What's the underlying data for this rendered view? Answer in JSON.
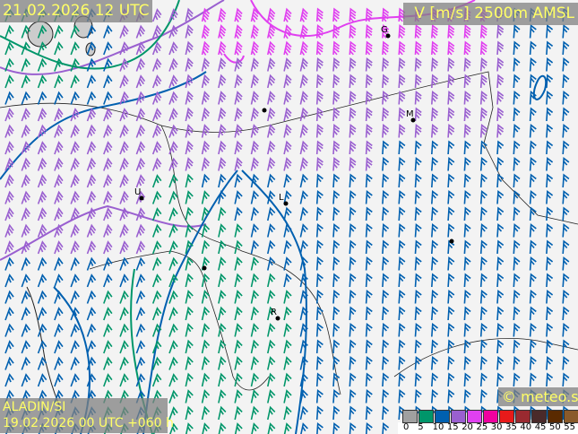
{
  "header": {
    "valid_time": "21.02.2026 12 UTC",
    "parameter": "V [m/s] 2500m AMSL"
  },
  "footer": {
    "model": "ALADIN/SI",
    "run": "19.02.2026 00 UTC +060 h",
    "copyright": "© meteo.si"
  },
  "legend": {
    "ticks": [
      "0",
      "5",
      "10",
      "15",
      "20",
      "25",
      "30",
      "35",
      "40",
      "45",
      "50",
      "55"
    ],
    "colors": [
      "#a0a0a0",
      "#00966a",
      "#0060b0",
      "#9a60d0",
      "#e040f0",
      "#f000a0",
      "#e81a1a",
      "#9a2a30",
      "#4a2a2a",
      "#5a2a00",
      "#8a5a2a",
      "#b89a6a"
    ]
  },
  "cities": [
    {
      "label": "G"
    },
    {
      "label": "M"
    },
    {
      "label": "U"
    },
    {
      "label": "L"
    },
    {
      "label": "R"
    },
    {
      "label": ""
    },
    {
      "label": ""
    },
    {
      "label": ""
    }
  ]
}
